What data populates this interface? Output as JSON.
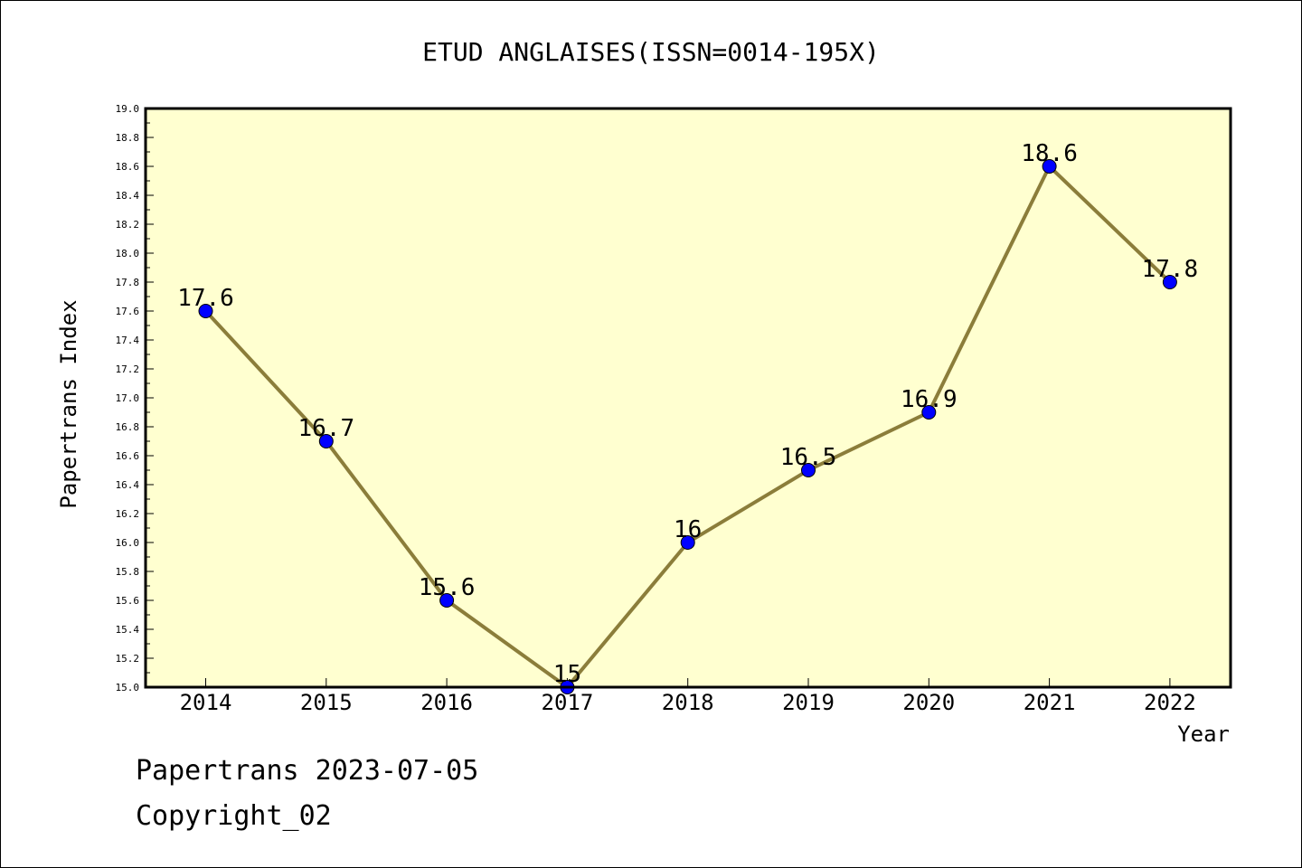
{
  "chart_data": {
    "type": "line",
    "title": "ETUD ANGLAISES(ISSN=0014-195X)",
    "xlabel": "Year",
    "ylabel": "Papertrans Index",
    "categories": [
      "2014",
      "2015",
      "2016",
      "2017",
      "2018",
      "2019",
      "2020",
      "2021",
      "2022"
    ],
    "series": [
      {
        "values": [
          17.6,
          16.7,
          15.6,
          15.0,
          16.0,
          16.5,
          16.9,
          18.6,
          17.8
        ],
        "data_labels": [
          "17.6",
          "16.7",
          "15.6",
          "15",
          "16",
          "16.5",
          "16.9",
          "18.6",
          "17.8"
        ]
      }
    ],
    "ylim": [
      15.0,
      19.0
    ],
    "yticks": [
      "15.0",
      "15.2",
      "15.4",
      "15.6",
      "15.8",
      "16.0",
      "16.2",
      "16.4",
      "16.6",
      "16.8",
      "17.0",
      "17.2",
      "17.4",
      "17.6",
      "17.8",
      "18.0",
      "18.2",
      "18.4",
      "18.6",
      "18.8",
      "19.0"
    ],
    "grid": false,
    "legend": "none",
    "colors": {
      "plot_background": "#FFFFD0",
      "line": "#8B7D3A",
      "marker": "#0000FF"
    }
  },
  "footer": {
    "line1": "Papertrans 2023-07-05",
    "line2": "Copyright_02"
  }
}
